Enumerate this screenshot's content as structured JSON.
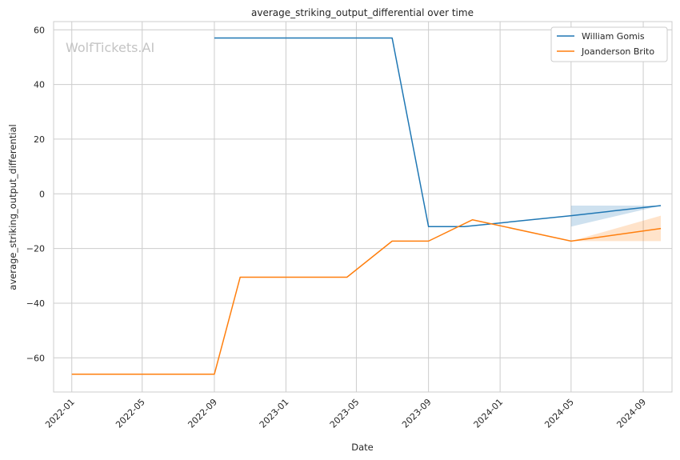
{
  "chart_data": {
    "type": "line",
    "title": "average_striking_output_differential over time",
    "xlabel": "Date",
    "ylabel": "average_striking_output_differential",
    "watermark": "WolfTickets.AI",
    "x_ticks": [
      "2022-01",
      "2022-05",
      "2022-09",
      "2023-01",
      "2023-05",
      "2023-09",
      "2024-01",
      "2024-05",
      "2024-09"
    ],
    "y_ticks": [
      60,
      40,
      20,
      0,
      -20,
      -40,
      -60
    ],
    "y_tick_labels": [
      "60",
      "40",
      "20",
      "0",
      "−20",
      "−40",
      "−60"
    ],
    "xlim": [
      "2021-12-01",
      "2024-10-20"
    ],
    "ylim": [
      -72.5,
      63
    ],
    "grid": true,
    "legend_position": "top-right",
    "series": [
      {
        "name": "William Gomis",
        "color": "#1f77b4",
        "points": [
          {
            "x": "2022-09-01",
            "y": 57
          },
          {
            "x": "2023-07-01",
            "y": 57
          },
          {
            "x": "2023-09-01",
            "y": -12
          },
          {
            "x": "2023-11-01",
            "y": -12
          },
          {
            "x": "2024-05-01",
            "y": -8
          },
          {
            "x": "2024-10-01",
            "y": -4.3
          }
        ],
        "band": [
          {
            "x": "2024-05-01",
            "low": -12,
            "high": -4.3
          },
          {
            "x": "2024-10-01",
            "low": -4.3,
            "high": -4.3
          }
        ]
      },
      {
        "name": "Joanderson Brito",
        "color": "#ff7f0e",
        "points": [
          {
            "x": "2022-01-01",
            "y": -66
          },
          {
            "x": "2022-09-01",
            "y": -66
          },
          {
            "x": "2022-10-15",
            "y": -30.5
          },
          {
            "x": "2023-04-15",
            "y": -30.5
          },
          {
            "x": "2023-07-01",
            "y": -17.3
          },
          {
            "x": "2023-09-01",
            "y": -17.3
          },
          {
            "x": "2023-11-15",
            "y": -9.5
          },
          {
            "x": "2024-05-01",
            "y": -17.3
          },
          {
            "x": "2024-10-01",
            "y": -12.7
          }
        ],
        "band": [
          {
            "x": "2024-05-01",
            "low": -17.3,
            "high": -17.3
          },
          {
            "x": "2024-10-01",
            "low": -17.3,
            "high": -8
          }
        ]
      }
    ]
  }
}
